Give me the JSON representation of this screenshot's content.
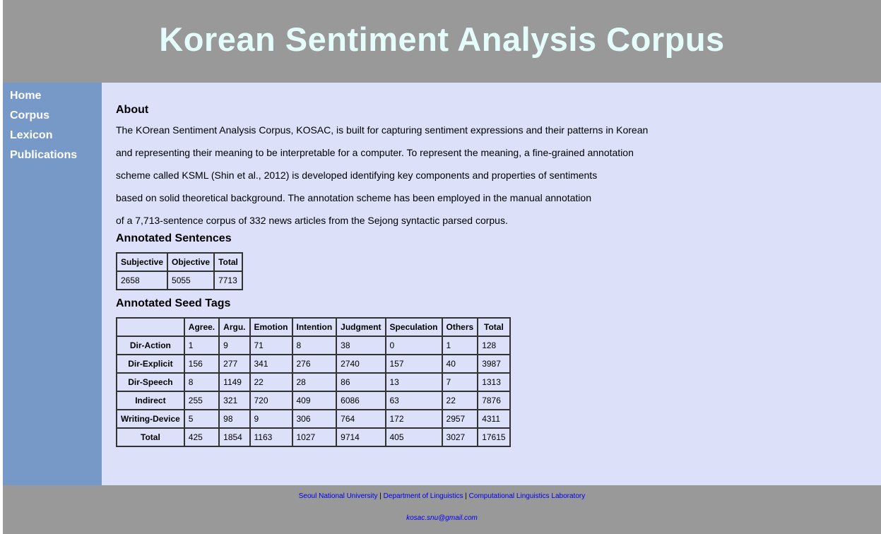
{
  "header": {
    "title": "Korean Sentiment Analysis Corpus"
  },
  "sidebar": {
    "items": [
      {
        "label": "Home"
      },
      {
        "label": "Corpus"
      },
      {
        "label": "Lexicon"
      },
      {
        "label": "Publications"
      }
    ]
  },
  "about": {
    "heading": "About",
    "lines": [
      "The KOrean Sentiment Analysis Corpus, KOSAC, is built for capturing sentiment expressions and their patterns in Korean",
      "and representing their meaning to be interpretable for a computer. To represent the meaning, a fine-grained annotation",
      "scheme called KSML (Shin et al., 2012) is developed identifying key components and properties of sentiments",
      "based on solid theoretical background. The annotation scheme has been employed in the manual annotation",
      "of a 7,713-sentence corpus of 332 news articles from the Sejong syntactic parsed corpus."
    ]
  },
  "sentences": {
    "heading": "Annotated Sentences",
    "headers": [
      "Subjective",
      "Objective",
      "Total"
    ],
    "row": [
      "2658",
      "5055",
      "7713"
    ]
  },
  "seed_tags": {
    "heading": "Annotated Seed Tags",
    "headers": [
      "",
      "Agree.",
      "Argu.",
      "Emotion",
      "Intention",
      "Judgment",
      "Speculation",
      "Others",
      "Total"
    ],
    "rows": [
      {
        "label": "Dir-Action",
        "values": [
          "1",
          "9",
          "71",
          "8",
          "38",
          "0",
          "1",
          "128"
        ]
      },
      {
        "label": "Dir-Explicit",
        "values": [
          "156",
          "277",
          "341",
          "276",
          "2740",
          "157",
          "40",
          "3987"
        ]
      },
      {
        "label": "Dir-Speech",
        "values": [
          "8",
          "1149",
          "22",
          "28",
          "86",
          "13",
          "7",
          "1313"
        ]
      },
      {
        "label": "Indirect",
        "values": [
          "255",
          "321",
          "720",
          "409",
          "6086",
          "63",
          "22",
          "7876"
        ]
      },
      {
        "label": "Writing-Device",
        "values": [
          "5",
          "98",
          "9",
          "306",
          "764",
          "172",
          "2957",
          "4311"
        ]
      },
      {
        "label": "Total",
        "values": [
          "425",
          "1854",
          "1163",
          "1027",
          "9714",
          "405",
          "3027",
          "17615"
        ]
      }
    ]
  },
  "footer": {
    "links": [
      "Seoul National University",
      "Department of Linguistics",
      "Computational Linguistics Laboratory"
    ],
    "separator": "|",
    "email": "kosac.snu@gmail.com"
  },
  "colors": {
    "header_bg": "#999999",
    "title_color": "#e4fdfb",
    "sidebar_bg": "#7799c8",
    "main_bg": "#dce0f8",
    "link_color": "#0000ee"
  }
}
